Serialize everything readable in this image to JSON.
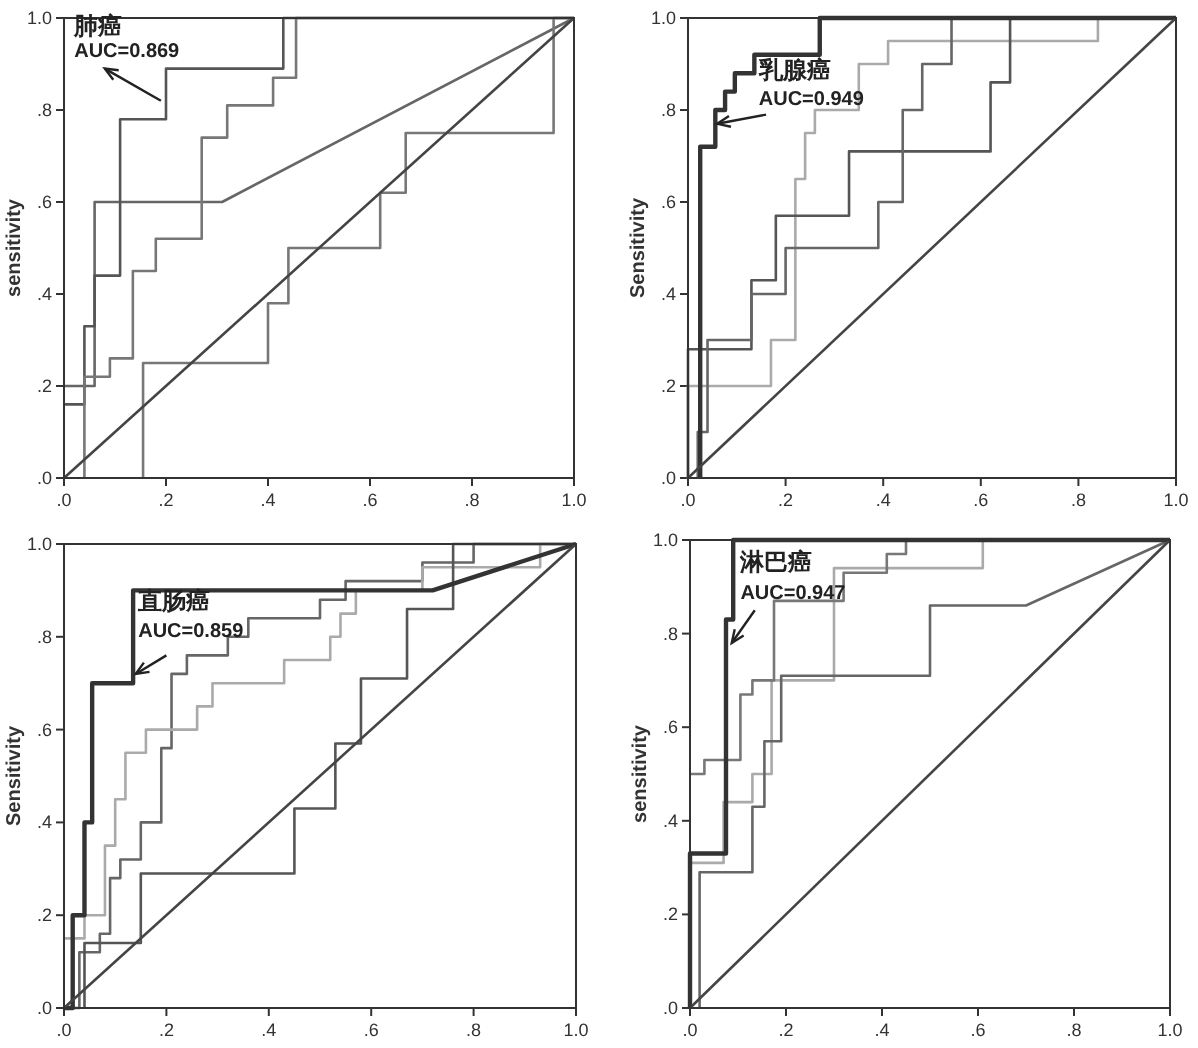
{
  "chart_data": [
    {
      "type": "line",
      "title": "肺癌",
      "ylabel": "sensitivity",
      "xlim": [
        0,
        1
      ],
      "ylim": [
        0,
        1
      ],
      "xticks": [
        {
          "value": 0,
          "label": ".0"
        },
        {
          "value": 0.2,
          "label": ".2"
        },
        {
          "value": 0.4,
          "label": ".4"
        },
        {
          "value": 0.6,
          "label": ".6"
        },
        {
          "value": 0.8,
          "label": ".8"
        },
        {
          "value": 1,
          "label": "1.0"
        }
      ],
      "yticks": [
        {
          "value": 0,
          "label": ".0"
        },
        {
          "value": 0.2,
          "label": ".2"
        },
        {
          "value": 0.4,
          "label": ".4"
        },
        {
          "value": 0.6,
          "label": ".6"
        },
        {
          "value": 0.8,
          "label": ".8"
        },
        {
          "value": 1,
          "label": "1.0"
        }
      ],
      "grid": false,
      "marker": "none",
      "line_style": "solid",
      "annotations": [
        "AUC=0.869"
      ],
      "series": [
        {
          "color": "#666666",
          "x": [
            0,
            0.06,
            0.06,
            0.31,
            1
          ],
          "values": [
            0.2,
            0.2,
            0.6,
            0.6,
            1
          ]
        },
        {
          "color": "#555555",
          "x": [
            0,
            0.04,
            0.04,
            0.06,
            0.06,
            0.11,
            0.11,
            0.2,
            0.2,
            0.43,
            0.43,
            1
          ],
          "values": [
            0.16,
            0.16,
            0.33,
            0.33,
            0.44,
            0.44,
            0.78,
            0.78,
            0.89,
            0.89,
            1,
            1
          ]
        },
        {
          "color": "#777777",
          "x": [
            0.04,
            0.04,
            0.09,
            0.09,
            0.135,
            0.135,
            0.18,
            0.18,
            0.27,
            0.27,
            0.32,
            0.32,
            0.41,
            0.41,
            0.455,
            0.455,
            1
          ],
          "values": [
            0,
            0.22,
            0.22,
            0.26,
            0.26,
            0.45,
            0.45,
            0.52,
            0.52,
            0.74,
            0.74,
            0.81,
            0.81,
            0.87,
            0.87,
            1,
            1
          ]
        },
        {
          "color": "#777777",
          "x": [
            0.155,
            0.155,
            0.4,
            0.4,
            0.44,
            0.44,
            0.62,
            0.62,
            0.67,
            0.67,
            0.96,
            0.96,
            1
          ],
          "values": [
            0,
            0.25,
            0.25,
            0.38,
            0.38,
            0.5,
            0.5,
            0.62,
            0.62,
            0.75,
            0.75,
            1,
            1
          ]
        },
        {
          "color": "#444444",
          "x": [
            0,
            1
          ],
          "values": [
            0,
            1
          ]
        }
      ]
    },
    {
      "type": "line",
      "title": "乳腺癌",
      "ylabel": "Sensitivity",
      "xlim": [
        0,
        1
      ],
      "ylim": [
        0,
        1
      ],
      "xticks": [
        {
          "value": 0,
          "label": ".0"
        },
        {
          "value": 0.2,
          "label": ".2"
        },
        {
          "value": 0.4,
          "label": ".4"
        },
        {
          "value": 0.6,
          "label": ".6"
        },
        {
          "value": 0.8,
          "label": ".8"
        },
        {
          "value": 1,
          "label": "1.0"
        }
      ],
      "yticks": [
        {
          "value": 0,
          "label": ".0"
        },
        {
          "value": 0.2,
          "label": ".2"
        },
        {
          "value": 0.4,
          "label": ".4"
        },
        {
          "value": 0.6,
          "label": ".6"
        },
        {
          "value": 0.8,
          "label": ".8"
        },
        {
          "value": 1,
          "label": "1.0"
        }
      ],
      "grid": false,
      "marker": "none",
      "line_style": "solid",
      "annotations": [
        "AUC=0.949"
      ],
      "series": [
        {
          "color": "#aaaaaa",
          "x": [
            0,
            0,
            0.17,
            0.17,
            0.22,
            0.22,
            0.24,
            0.24,
            0.26,
            0.26,
            0.35,
            0.35,
            0.41,
            0.41,
            0.84,
            0.84,
            1
          ],
          "values": [
            0,
            0.2,
            0.2,
            0.3,
            0.3,
            0.65,
            0.65,
            0.75,
            0.75,
            0.8,
            0.8,
            0.9,
            0.9,
            0.95,
            0.95,
            1,
            1
          ]
        },
        {
          "color": "#555555",
          "x": [
            0,
            0,
            0.13,
            0.13,
            0.18,
            0.18,
            0.33,
            0.33,
            0.62,
            0.62,
            0.66,
            0.66,
            1
          ],
          "values": [
            0,
            0.28,
            0.28,
            0.43,
            0.43,
            0.57,
            0.57,
            0.71,
            0.71,
            0.86,
            0.86,
            1,
            1
          ]
        },
        {
          "color": "#666666",
          "x": [
            0.02,
            0.02,
            0.04,
            0.04,
            0.13,
            0.13,
            0.2,
            0.2,
            0.39,
            0.39,
            0.44,
            0.44,
            0.48,
            0.48,
            0.54,
            0.54,
            1
          ],
          "values": [
            0,
            0.1,
            0.1,
            0.3,
            0.3,
            0.4,
            0.4,
            0.5,
            0.5,
            0.6,
            0.6,
            0.8,
            0.8,
            0.9,
            0.9,
            1,
            1
          ]
        },
        {
          "color": "#333333",
          "x": [
            0.025,
            0.025,
            0.056,
            0.056,
            0.076,
            0.076,
            0.096,
            0.096,
            0.136,
            0.136,
            0.27,
            0.27,
            1
          ],
          "values": [
            0,
            0.72,
            0.72,
            0.8,
            0.8,
            0.84,
            0.84,
            0.88,
            0.88,
            0.92,
            0.92,
            1,
            1
          ]
        },
        {
          "color": "#444444",
          "x": [
            0,
            1
          ],
          "values": [
            0,
            1
          ]
        }
      ]
    },
    {
      "type": "line",
      "title": "直肠癌",
      "ylabel": "Sensitivity",
      "xlim": [
        0,
        1
      ],
      "ylim": [
        0,
        1
      ],
      "xticks": [
        {
          "value": 0,
          "label": ".0"
        },
        {
          "value": 0.2,
          "label": ".2"
        },
        {
          "value": 0.4,
          "label": ".4"
        },
        {
          "value": 0.6,
          "label": ".6"
        },
        {
          "value": 0.8,
          "label": ".8"
        },
        {
          "value": 1,
          "label": "1.0"
        }
      ],
      "yticks": [
        {
          "value": 0,
          "label": ".0"
        },
        {
          "value": 0.2,
          "label": ".2"
        },
        {
          "value": 0.4,
          "label": ".4"
        },
        {
          "value": 0.6,
          "label": ".6"
        },
        {
          "value": 0.8,
          "label": ".8"
        },
        {
          "value": 1,
          "label": "1.0"
        }
      ],
      "grid": false,
      "marker": "none",
      "line_style": "solid",
      "annotations": [
        "AUC=0.859"
      ],
      "series": [
        {
          "color": "#666666",
          "x": [
            0,
            0.03,
            0.03,
            0.07,
            0.07,
            0.09,
            0.09,
            0.11,
            0.11,
            0.15,
            0.15,
            0.19,
            0.19,
            0.21,
            0.21,
            0.24,
            0.24,
            0.32,
            0.32,
            0.36,
            0.36,
            0.5,
            0.5,
            0.55,
            0.55,
            0.7,
            0.7,
            0.8,
            0.8,
            1
          ],
          "values": [
            0,
            0,
            0.12,
            0.12,
            0.16,
            0.16,
            0.28,
            0.28,
            0.32,
            0.32,
            0.4,
            0.4,
            0.56,
            0.56,
            0.72,
            0.72,
            0.76,
            0.76,
            0.8,
            0.8,
            0.84,
            0.84,
            0.88,
            0.88,
            0.92,
            0.92,
            0.96,
            0.96,
            1,
            1
          ]
        },
        {
          "color": "#aaaaaa",
          "x": [
            0,
            0.04,
            0.04,
            0.08,
            0.08,
            0.1,
            0.1,
            0.12,
            0.12,
            0.16,
            0.16,
            0.26,
            0.26,
            0.29,
            0.29,
            0.43,
            0.43,
            0.52,
            0.52,
            0.54,
            0.54,
            0.57,
            0.57,
            0.7,
            0.7,
            0.93,
            0.93,
            1
          ],
          "values": [
            0.15,
            0.15,
            0.2,
            0.2,
            0.35,
            0.35,
            0.45,
            0.45,
            0.55,
            0.55,
            0.6,
            0.6,
            0.65,
            0.65,
            0.7,
            0.7,
            0.75,
            0.75,
            0.8,
            0.8,
            0.85,
            0.85,
            0.9,
            0.9,
            0.95,
            0.95,
            1,
            1
          ]
        },
        {
          "color": "#555555",
          "x": [
            0.04,
            0.04,
            0.15,
            0.15,
            0.45,
            0.45,
            0.53,
            0.53,
            0.58,
            0.58,
            0.67,
            0.67,
            0.76,
            0.76,
            1
          ],
          "values": [
            0,
            0.14,
            0.14,
            0.29,
            0.29,
            0.43,
            0.43,
            0.57,
            0.57,
            0.71,
            0.71,
            0.86,
            0.86,
            1,
            1
          ]
        },
        {
          "color": "#333333",
          "x": [
            0,
            0.017,
            0.017,
            0.04,
            0.04,
            0.055,
            0.055,
            0.135,
            0.135,
            0.72,
            1
          ],
          "values": [
            0,
            0,
            0.2,
            0.2,
            0.4,
            0.4,
            0.7,
            0.7,
            0.9,
            0.9,
            1
          ]
        },
        {
          "color": "#444444",
          "x": [
            0,
            1
          ],
          "values": [
            0,
            1
          ]
        }
      ]
    },
    {
      "type": "line",
      "title": "淋巴癌",
      "ylabel": "sensitivity",
      "xlim": [
        0,
        1
      ],
      "ylim": [
        0,
        1
      ],
      "xticks": [
        {
          "value": 0,
          "label": ".0"
        },
        {
          "value": 0.2,
          "label": ".2"
        },
        {
          "value": 0.4,
          "label": ".4"
        },
        {
          "value": 0.6,
          "label": ".6"
        },
        {
          "value": 0.8,
          "label": ".8"
        },
        {
          "value": 1,
          "label": "1.0"
        }
      ],
      "yticks": [
        {
          "value": 0,
          "label": ".0"
        },
        {
          "value": 0.2,
          "label": ".2"
        },
        {
          "value": 0.4,
          "label": ".4"
        },
        {
          "value": 0.6,
          "label": ".6"
        },
        {
          "value": 0.8,
          "label": ".8"
        },
        {
          "value": 1,
          "label": "1.0"
        }
      ],
      "grid": false,
      "marker": "none",
      "line_style": "solid",
      "annotations": [
        "AUC=0.947"
      ],
      "series": [
        {
          "color": "#aaaaaa",
          "x": [
            0,
            0,
            0.07,
            0.07,
            0.13,
            0.13,
            0.17,
            0.17,
            0.3,
            0.3,
            0.61,
            0.61,
            1
          ],
          "values": [
            0,
            0.31,
            0.31,
            0.44,
            0.44,
            0.5,
            0.5,
            0.7,
            0.7,
            0.94,
            0.94,
            1,
            1
          ]
        },
        {
          "color": "#777777",
          "x": [
            0,
            0.03,
            0.03,
            0.105,
            0.105,
            0.13,
            0.13,
            0.175,
            0.175,
            0.32,
            0.32,
            0.41,
            0.41,
            0.45,
            0.45,
            1
          ],
          "values": [
            0.5,
            0.5,
            0.53,
            0.53,
            0.67,
            0.67,
            0.7,
            0.7,
            0.87,
            0.87,
            0.93,
            0.93,
            0.97,
            0.97,
            1,
            1
          ]
        },
        {
          "color": "#666666",
          "x": [
            0.02,
            0.02,
            0.13,
            0.13,
            0.155,
            0.155,
            0.19,
            0.19,
            0.5,
            0.5,
            0.7,
            1
          ],
          "values": [
            0,
            0.29,
            0.29,
            0.43,
            0.43,
            0.57,
            0.57,
            0.71,
            0.71,
            0.86,
            0.86,
            1
          ]
        },
        {
          "color": "#333333",
          "x": [
            0,
            0,
            0.075,
            0.075,
            0.09,
            0.09,
            1
          ],
          "values": [
            0,
            0.33,
            0.33,
            0.83,
            0.83,
            1,
            1
          ]
        },
        {
          "color": "#444444",
          "x": [
            0,
            1
          ],
          "values": [
            0,
            1
          ]
        }
      ]
    }
  ]
}
